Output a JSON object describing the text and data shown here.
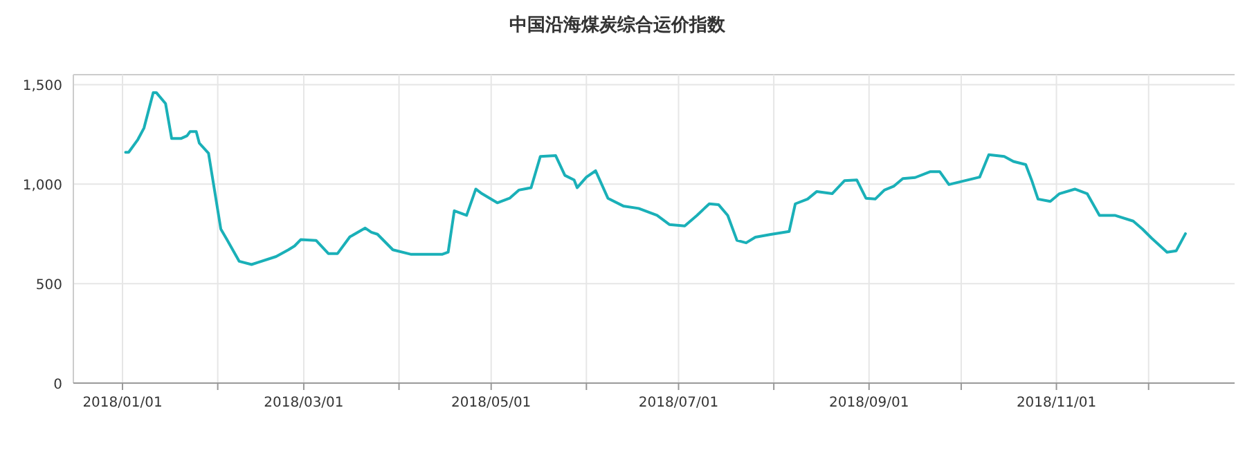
{
  "chart_data": {
    "type": "line",
    "title": "中国沿海煤炭综合运价指数",
    "x": [
      "2018-01-02",
      "2018-01-03",
      "2018-01-06",
      "2018-01-08",
      "2018-01-11",
      "2018-01-12",
      "2018-01-15",
      "2018-01-17",
      "2018-01-20",
      "2018-01-22",
      "2018-01-23",
      "2018-01-25",
      "2018-01-26",
      "2018-01-29",
      "2018-02-02",
      "2018-02-04",
      "2018-02-08",
      "2018-02-12",
      "2018-02-14",
      "2018-02-20",
      "2018-02-24",
      "2018-02-26",
      "2018-02-28",
      "2018-03-05",
      "2018-03-09",
      "2018-03-12",
      "2018-03-16",
      "2018-03-21",
      "2018-03-23",
      "2018-03-25",
      "2018-03-30",
      "2018-04-05",
      "2018-04-15",
      "2018-04-17",
      "2018-04-19",
      "2018-04-23",
      "2018-04-26",
      "2018-04-28",
      "2018-05-03",
      "2018-05-07",
      "2018-05-10",
      "2018-05-14",
      "2018-05-17",
      "2018-05-22",
      "2018-05-25",
      "2018-05-28",
      "2018-05-29",
      "2018-06-01",
      "2018-06-04",
      "2018-06-08",
      "2018-06-13",
      "2018-06-18",
      "2018-06-24",
      "2018-06-28",
      "2018-07-03",
      "2018-07-07",
      "2018-07-11",
      "2018-07-14",
      "2018-07-17",
      "2018-07-20",
      "2018-07-23",
      "2018-07-26",
      "2018-07-31",
      "2018-08-06",
      "2018-08-08",
      "2018-08-12",
      "2018-08-15",
      "2018-08-20",
      "2018-08-24",
      "2018-08-28",
      "2018-08-31",
      "2018-09-03",
      "2018-09-06",
      "2018-09-09",
      "2018-09-12",
      "2018-09-16",
      "2018-09-21",
      "2018-09-24",
      "2018-09-27",
      "2018-10-07",
      "2018-10-10",
      "2018-10-15",
      "2018-10-18",
      "2018-10-22",
      "2018-10-24",
      "2018-10-26",
      "2018-10-30",
      "2018-11-02",
      "2018-11-07",
      "2018-11-11",
      "2018-11-15",
      "2018-11-20",
      "2018-11-26",
      "2018-11-29",
      "2018-12-02",
      "2018-12-07",
      "2018-12-10",
      "2018-12-13"
    ],
    "series": [
      {
        "color": "#1ab0b8",
        "values": [
          1160,
          1160,
          1224,
          1282,
          1460,
          1460,
          1405,
          1229,
          1229,
          1243,
          1264,
          1264,
          1206,
          1155,
          774,
          721,
          612,
          596,
          606,
          636,
          670,
          689,
          721,
          717,
          651,
          651,
          735,
          779,
          758,
          748,
          670,
          647,
          647,
          658,
          866,
          843,
          975,
          952,
          906,
          929,
          970,
          982,
          1139,
          1143,
          1044,
          1021,
          982,
          1035,
          1067,
          929,
          890,
          878,
          843,
          797,
          790,
          843,
          901,
          897,
          843,
          717,
          705,
          733,
          747,
          762,
          901,
          925,
          963,
          952,
          1017,
          1021,
          929,
          925,
          970,
          989,
          1028,
          1033,
          1063,
          1063,
          998,
          1035,
          1148,
          1139,
          1114,
          1098,
          1017,
          925,
          913,
          952,
          975,
          952,
          843,
          843,
          814,
          774,
          728,
          658,
          665,
          751
        ]
      }
    ],
    "xlim": [
      "2017-12-16",
      "2018-12-29"
    ],
    "xticks": [
      {
        "value": "2018-01-01",
        "label": "2018/01/01"
      },
      {
        "value": "2018-02-01",
        "label": null
      },
      {
        "value": "2018-03-01",
        "label": "2018/03/01"
      },
      {
        "value": "2018-04-01",
        "label": null
      },
      {
        "value": "2018-05-01",
        "label": "2018/05/01"
      },
      {
        "value": "2018-06-01",
        "label": null
      },
      {
        "value": "2018-07-01",
        "label": "2018/07/01"
      },
      {
        "value": "2018-08-01",
        "label": null
      },
      {
        "value": "2018-09-01",
        "label": "2018/09/01"
      },
      {
        "value": "2018-10-01",
        "label": null
      },
      {
        "value": "2018-11-01",
        "label": "2018/11/01"
      },
      {
        "value": "2018-12-01",
        "label": null
      }
    ],
    "ylim": [
      0,
      1550
    ],
    "yticks": [
      0,
      500,
      {
        "value": 1000,
        "label": "1,000"
      },
      {
        "value": 1500,
        "label": "1,500"
      }
    ],
    "grid": true,
    "marker": "none",
    "line_style": "solid"
  }
}
